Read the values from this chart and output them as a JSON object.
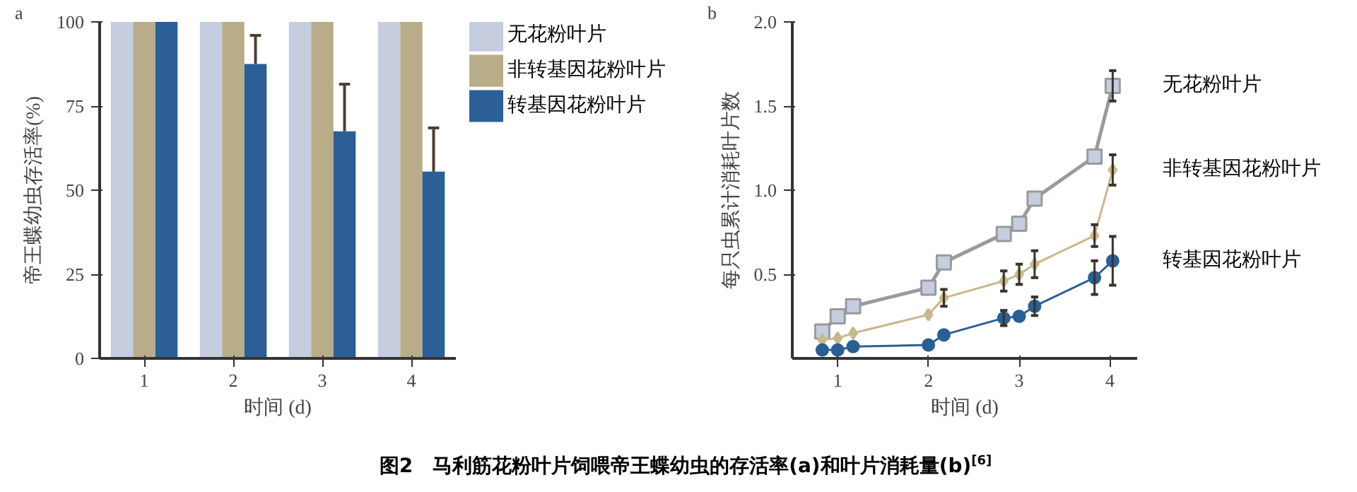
{
  "chart_data": [
    {
      "type": "bar",
      "categories": [
        "1",
        "2",
        "3",
        "4"
      ],
      "xlabel": "时间 (d)",
      "ylabel": "帝王蝶幼虫存活率(%)",
      "ylim": [
        0,
        100
      ],
      "yticks": [
        0,
        25,
        50,
        75,
        100
      ],
      "grid": false,
      "legend": "top right",
      "annotations": [
        "a",
        "图2　马利筋花粉叶片饲喂帝王蝶幼虫的存活率(a)和叶片消耗量(b)$^{[6]}$"
      ],
      "series": [
        {
          "name": "无花粉叶片",
          "color": "#c5cddf",
          "values": [
            100,
            100,
            100,
            100
          ]
        },
        {
          "name": "非转基因花粉叶片",
          "color": "#b8ad88",
          "values": [
            100,
            100,
            100,
            100
          ]
        },
        {
          "name": "转基因花粉叶片",
          "color": "#2b5f96",
          "values": [
            100,
            87.5,
            67.5,
            55.5
          ],
          "errors": [
            null,
            [
              87.5,
              96
            ],
            [
              67.5,
              81.5
            ],
            [
              55.5,
              68.5
            ]
          ]
        }
      ]
    },
    {
      "type": "line",
      "xlabel": "时间 (d)",
      "ylabel": "每只虫累计消耗叶片数",
      "xlim": [
        0.5,
        4.3
      ],
      "xticks": [
        1,
        2,
        3,
        4
      ],
      "ylim": [
        0,
        2.0
      ],
      "yticks": [
        0.5,
        {
          "value": 1.0,
          "label": "1.0"
        },
        1.5,
        {
          "value": 2.0,
          "label": "2.0"
        }
      ],
      "grid": false,
      "legend": false,
      "annotations": [
        "b"
      ],
      "x": [
        0.83,
        1.0,
        1.17,
        2.0,
        2.17,
        2.83,
        3.0,
        3.17,
        3.83,
        4.03
      ],
      "series": [
        {
          "name": "无花粉叶片",
          "color": "#9a9a9a",
          "marker": "square",
          "values": [
            0.16,
            0.25,
            0.31,
            0.42,
            0.57,
            0.74,
            0.8,
            0.95,
            1.2,
            1.62
          ],
          "errors": [
            null,
            null,
            null,
            null,
            null,
            null,
            null,
            null,
            null,
            0.09
          ]
        },
        {
          "name": "非转基因花粉叶片",
          "color": "#c8b88a",
          "marker": "diamond",
          "values": [
            0.11,
            0.12,
            0.15,
            0.26,
            0.36,
            0.46,
            0.5,
            0.56,
            0.73,
            1.12
          ],
          "errors": [
            null,
            null,
            null,
            null,
            0.05,
            0.06,
            0.06,
            0.08,
            0.065,
            0.09
          ]
        },
        {
          "name": "转基因花粉叶片",
          "color": "#2a5f94",
          "marker": "circle",
          "values": [
            0.05,
            0.05,
            0.07,
            0.08,
            0.14,
            0.24,
            0.25,
            0.31,
            0.48,
            0.58
          ],
          "errors": [
            null,
            null,
            null,
            null,
            null,
            0.045,
            null,
            0.055,
            0.1,
            0.145
          ]
        }
      ]
    }
  ]
}
